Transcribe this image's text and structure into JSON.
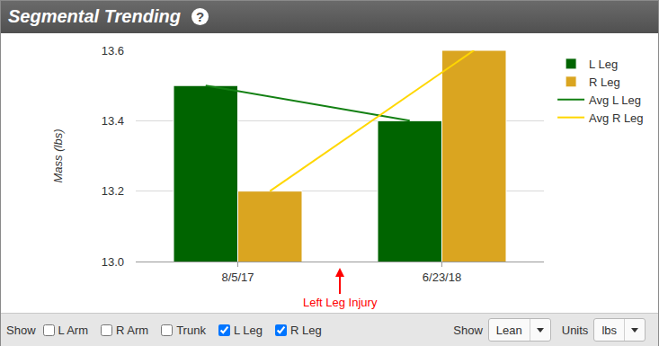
{
  "header": {
    "title": "Segmental Trending",
    "help_icon": "?"
  },
  "chart_data": {
    "type": "bar",
    "categories": [
      "8/5/17",
      "6/23/18"
    ],
    "series": [
      {
        "name": "L Leg",
        "type": "bar",
        "color": "#006400",
        "values": [
          13.5,
          13.4
        ]
      },
      {
        "name": "R Leg",
        "type": "bar",
        "color": "#DAA520",
        "values": [
          13.2,
          13.6
        ]
      },
      {
        "name": "Avg L Leg",
        "type": "line",
        "color": "#138013",
        "values": [
          13.5,
          13.4
        ]
      },
      {
        "name": "Avg R Leg",
        "type": "line",
        "color": "#FFD700",
        "values": [
          13.2,
          13.6
        ]
      }
    ],
    "y_label": "Mass (lbs)",
    "ylim": [
      13,
      13.6
    ],
    "yticks": [
      {
        "value": 13,
        "label": "13.0"
      },
      {
        "value": 13.2,
        "label": "13.2"
      },
      {
        "value": 13.4,
        "label": "13.4"
      },
      {
        "value": 13.6,
        "label": "13.6"
      }
    ],
    "grid": true,
    "legend": "right",
    "annotations": [
      {
        "text": "Left Leg Injury",
        "between": [
          "8/5/17",
          "6/23/18"
        ],
        "color": "#ff0000"
      }
    ]
  },
  "controls": {
    "show_label": "Show",
    "checkboxes": [
      {
        "label": "L Arm",
        "checked": false
      },
      {
        "label": "R Arm",
        "checked": false
      },
      {
        "label": "Trunk",
        "checked": false
      },
      {
        "label": "L Leg",
        "checked": true
      },
      {
        "label": "R Leg",
        "checked": true
      }
    ],
    "dropdowns": [
      {
        "label": "Show",
        "value": "Lean"
      },
      {
        "label": "Units",
        "value": "lbs"
      }
    ]
  }
}
